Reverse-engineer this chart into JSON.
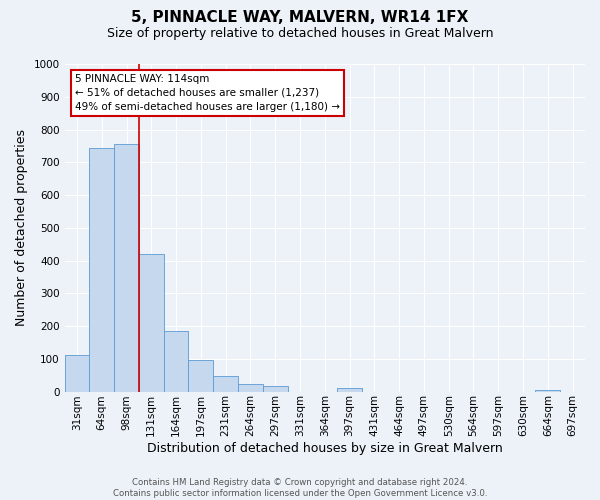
{
  "title": "5, PINNACLE WAY, MALVERN, WR14 1FX",
  "subtitle": "Size of property relative to detached houses in Great Malvern",
  "bar_values": [
    113,
    745,
    757,
    420,
    185,
    97,
    47,
    22,
    17,
    0,
    0,
    10,
    0,
    0,
    0,
    0,
    0,
    0,
    0,
    5
  ],
  "bar_labels": [
    "31sqm",
    "64sqm",
    "98sqm",
    "131sqm",
    "164sqm",
    "197sqm",
    "231sqm",
    "264sqm",
    "297sqm",
    "331sqm",
    "364sqm",
    "397sqm",
    "431sqm",
    "464sqm",
    "497sqm",
    "530sqm",
    "564sqm",
    "597sqm",
    "630sqm",
    "664sqm"
  ],
  "extra_tick_label": "697sqm",
  "bar_color": "#c5d8ed",
  "bar_edge_color": "#5b9bd5",
  "vline_x": 2.5,
  "vline_color": "#cc0000",
  "annotation_title": "5 PINNACLE WAY: 114sqm",
  "annotation_line1": "← 51% of detached houses are smaller (1,237)",
  "annotation_line2": "49% of semi-detached houses are larger (1,180) →",
  "annotation_box_color": "#cc0000",
  "xlabel": "Distribution of detached houses by size in Great Malvern",
  "ylabel": "Number of detached properties",
  "ylim": [
    0,
    1000
  ],
  "yticks": [
    0,
    100,
    200,
    300,
    400,
    500,
    600,
    700,
    800,
    900,
    1000
  ],
  "footer_line1": "Contains HM Land Registry data © Crown copyright and database right 2024.",
  "footer_line2": "Contains public sector information licensed under the Open Government Licence v3.0.",
  "bg_color": "#edf2f9",
  "grid_color": "#ffffff",
  "title_fontsize": 11,
  "subtitle_fontsize": 9,
  "axis_label_fontsize": 9,
  "tick_fontsize": 7.5
}
